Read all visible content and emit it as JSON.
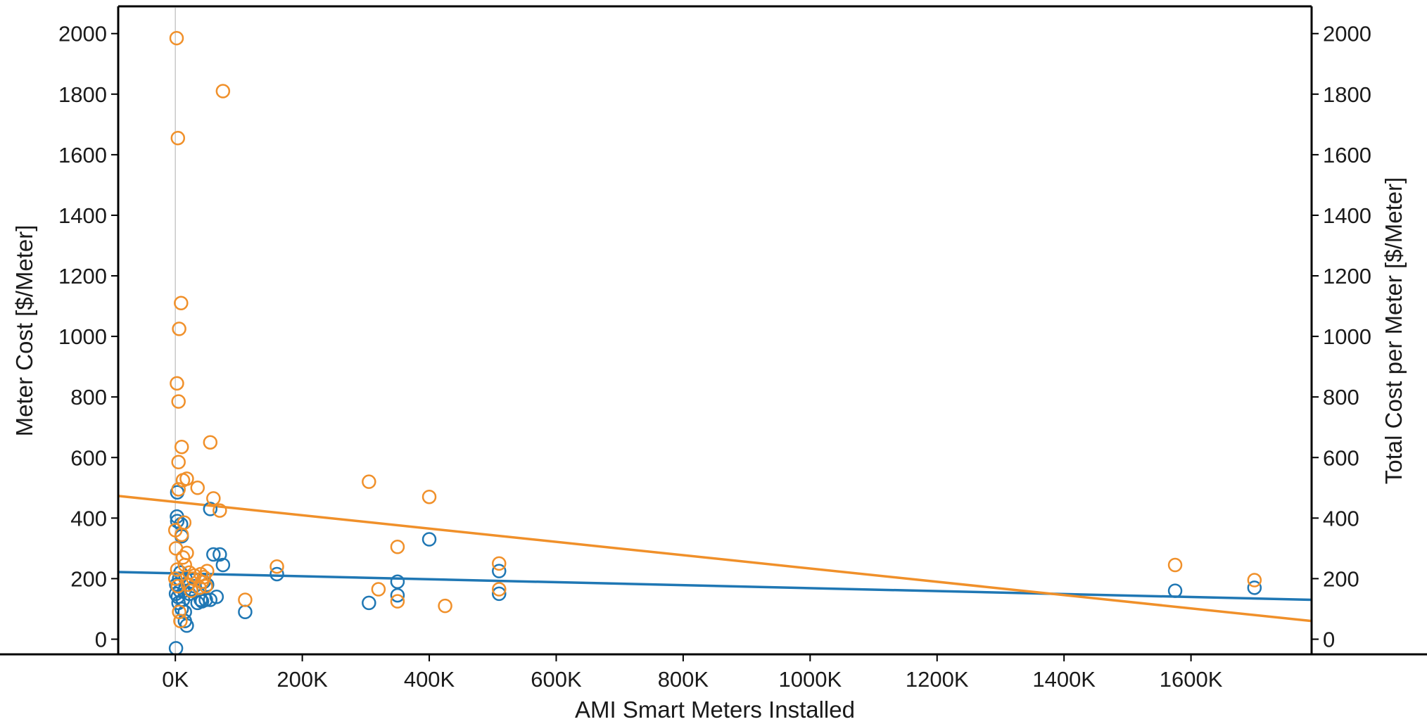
{
  "chart_data": {
    "type": "scatter",
    "xlabel": "AMI Smart Meters Installed",
    "ylabel_left": "Meter Cost [$/Meter]",
    "ylabel_right": "Total Cost per Meter [$/Meter]",
    "xlim": [
      -90000,
      1790000
    ],
    "ylim": [
      -50,
      2090
    ],
    "x_ticks": [
      0,
      200000,
      400000,
      600000,
      800000,
      1000000,
      1200000,
      1400000,
      1600000
    ],
    "x_tick_labels": [
      "0K",
      "200K",
      "400K",
      "600K",
      "800K",
      "1000K",
      "1200K",
      "1400K",
      "1600K"
    ],
    "y_ticks": [
      0,
      200,
      400,
      600,
      800,
      1000,
      1200,
      1400,
      1600,
      1800,
      2000
    ],
    "y_tick_labels": [
      "0",
      "200",
      "400",
      "600",
      "800",
      "1000",
      "1200",
      "1400",
      "1600",
      "1800",
      "2000"
    ],
    "grid": false,
    "legend": "none",
    "series": [
      {
        "color": "#1f77b4",
        "points": [
          [
            1000,
            -30
          ],
          [
            1000,
            150
          ],
          [
            1500,
            180
          ],
          [
            2500,
            405
          ],
          [
            3000,
            390
          ],
          [
            3000,
            485
          ],
          [
            4000,
            140
          ],
          [
            5000,
            120
          ],
          [
            6000,
            200
          ],
          [
            7000,
            160
          ],
          [
            8000,
            220
          ],
          [
            9000,
            380
          ],
          [
            10000,
            340
          ],
          [
            10000,
            100
          ],
          [
            12000,
            130
          ],
          [
            14000,
            160
          ],
          [
            15000,
            60
          ],
          [
            15000,
            90
          ],
          [
            16000,
            200
          ],
          [
            18000,
            45
          ],
          [
            20000,
            180
          ],
          [
            22000,
            150
          ],
          [
            25000,
            165
          ],
          [
            30000,
            175
          ],
          [
            35000,
            120
          ],
          [
            40000,
            130
          ],
          [
            42000,
            125
          ],
          [
            45000,
            190
          ],
          [
            48000,
            130
          ],
          [
            50000,
            180
          ],
          [
            55000,
            130
          ],
          [
            55000,
            430
          ],
          [
            60000,
            280
          ],
          [
            65000,
            140
          ],
          [
            70000,
            280
          ],
          [
            75000,
            245
          ],
          [
            110000,
            90
          ],
          [
            160000,
            215
          ],
          [
            305000,
            120
          ],
          [
            350000,
            145
          ],
          [
            350000,
            190
          ],
          [
            400000,
            330
          ],
          [
            510000,
            150
          ],
          [
            510000,
            225
          ],
          [
            1575000,
            160
          ],
          [
            1700000,
            170
          ]
        ],
        "trend": {
          "x": [
            -90000,
            1790000
          ],
          "y": [
            222,
            130
          ]
        }
      },
      {
        "color": "#f0902a",
        "points": [
          [
            2000,
            1985
          ],
          [
            4000,
            1655
          ],
          [
            6000,
            1025
          ],
          [
            9000,
            1110
          ],
          [
            2500,
            845
          ],
          [
            5000,
            785
          ],
          [
            10000,
            635
          ],
          [
            5000,
            585
          ],
          [
            12000,
            525
          ],
          [
            18000,
            530
          ],
          [
            5000,
            495
          ],
          [
            0,
            360
          ],
          [
            0,
            200
          ],
          [
            1000,
            300
          ],
          [
            3000,
            230
          ],
          [
            4000,
            175
          ],
          [
            6000,
            90
          ],
          [
            8000,
            60
          ],
          [
            10000,
            345
          ],
          [
            12000,
            270
          ],
          [
            14000,
            385
          ],
          [
            15000,
            245
          ],
          [
            18000,
            285
          ],
          [
            20000,
            180
          ],
          [
            22000,
            220
          ],
          [
            25000,
            160
          ],
          [
            28000,
            200
          ],
          [
            30000,
            210
          ],
          [
            35000,
            500
          ],
          [
            38000,
            170
          ],
          [
            40000,
            215
          ],
          [
            42000,
            190
          ],
          [
            45000,
            205
          ],
          [
            48000,
            175
          ],
          [
            50000,
            225
          ],
          [
            55000,
            650
          ],
          [
            60000,
            465
          ],
          [
            70000,
            425
          ],
          [
            75000,
            1810
          ],
          [
            110000,
            130
          ],
          [
            160000,
            240
          ],
          [
            305000,
            520
          ],
          [
            320000,
            165
          ],
          [
            350000,
            305
          ],
          [
            350000,
            125
          ],
          [
            400000,
            470
          ],
          [
            425000,
            110
          ],
          [
            510000,
            250
          ],
          [
            510000,
            165
          ],
          [
            1575000,
            245
          ],
          [
            1700000,
            195
          ]
        ],
        "trend": {
          "x": [
            -90000,
            1790000
          ],
          "y": [
            473,
            60
          ]
        }
      }
    ]
  }
}
